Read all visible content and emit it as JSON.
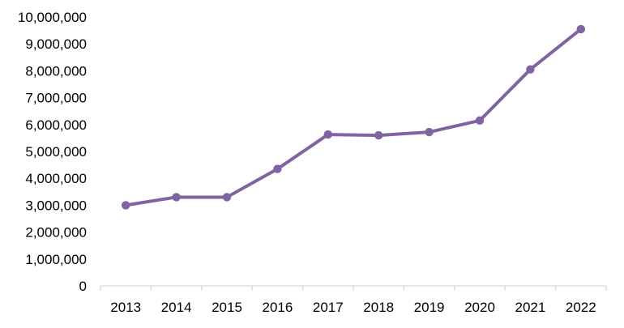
{
  "chart_data": {
    "type": "line",
    "title": "",
    "xlabel": "",
    "ylabel": "",
    "categories": [
      "2013",
      "2014",
      "2015",
      "2016",
      "2017",
      "2018",
      "2019",
      "2020",
      "2021",
      "2022"
    ],
    "series": [
      {
        "values": [
          3000000,
          3300000,
          3300000,
          4350000,
          5630000,
          5600000,
          5720000,
          6150000,
          8050000,
          9550000
        ],
        "color": "#8064a2"
      }
    ],
    "ylim": [
      0,
      10000000
    ],
    "yticks": [
      0,
      1000000,
      2000000,
      3000000,
      4000000,
      5000000,
      6000000,
      7000000,
      8000000,
      9000000,
      10000000
    ],
    "ytick_labels": [
      "0",
      "1,000,000",
      "2,000,000",
      "3,000,000",
      "4,000,000",
      "5,000,000",
      "6,000,000",
      "7,000,000",
      "8,000,000",
      "9,000,000",
      "10,000,000"
    ],
    "grid": false,
    "legend": "none",
    "axis_color": "#d9d9d9"
  }
}
